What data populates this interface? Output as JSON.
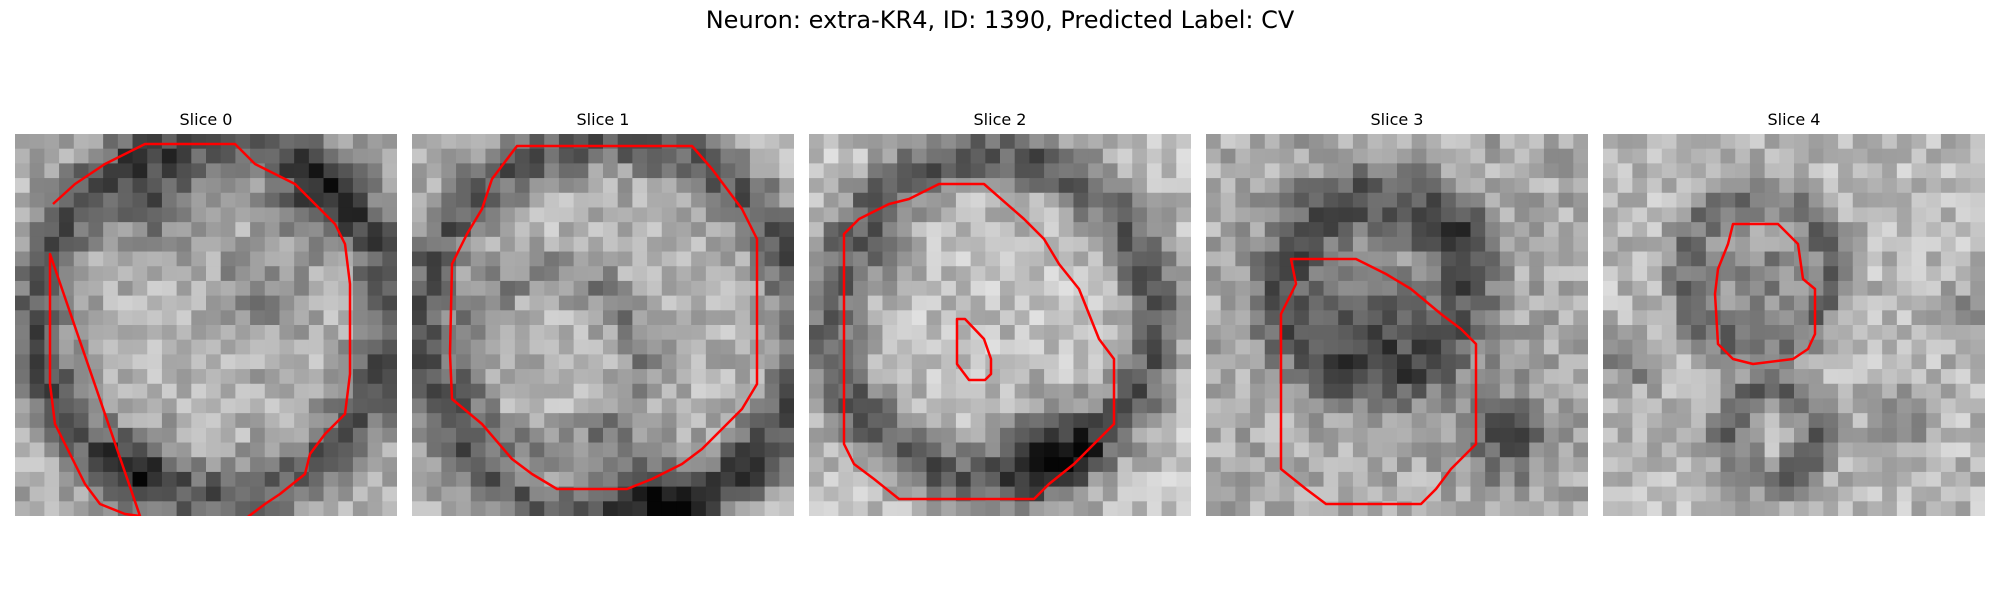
{
  "figure": {
    "title": "Neuron: extra-KR4, ID: 1390, Predicted Label: CV"
  },
  "contour_color": "#ff0000",
  "panels": [
    {
      "title": "Slice 0",
      "icon": "grayscale-em-slice"
    },
    {
      "title": "Slice 1",
      "icon": "grayscale-em-slice"
    },
    {
      "title": "Slice 2",
      "icon": "grayscale-em-slice"
    },
    {
      "title": "Slice 3",
      "icon": "grayscale-em-slice"
    },
    {
      "title": "Slice 4",
      "icon": "grayscale-em-slice"
    }
  ]
}
